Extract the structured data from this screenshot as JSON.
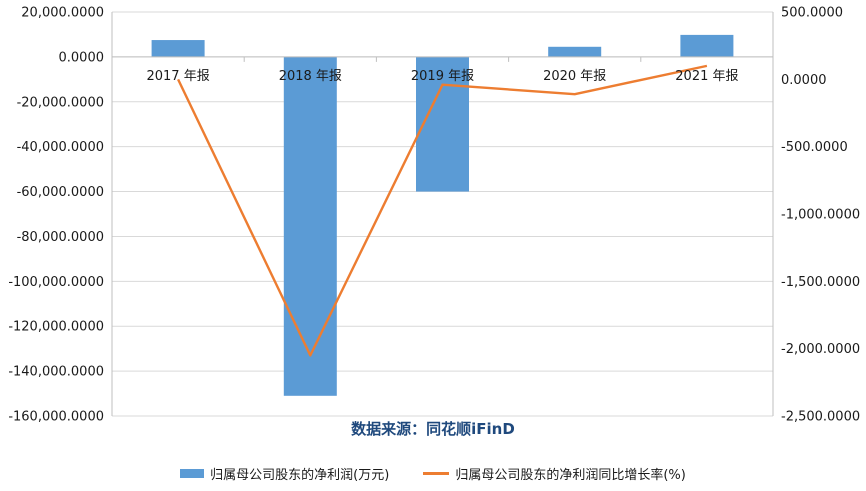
{
  "chart_data": {
    "type": "bar",
    "categories": [
      "2017 年报",
      "2018 年报",
      "2019 年报",
      "2020 年报",
      "2021 年报"
    ],
    "series": [
      {
        "name": "归属母公司股东的净利润(万元)",
        "type": "bar",
        "axis": "left",
        "color": "#5b9bd5",
        "values": [
          7500,
          -151000,
          -60000,
          4500,
          9800
        ]
      },
      {
        "name": "归属母公司股东的净利润同比增长率(%)",
        "type": "line",
        "axis": "right",
        "color": "#ed7d31",
        "values": [
          0,
          -2050,
          -40,
          -110,
          100
        ]
      }
    ],
    "y_left": {
      "ylim": [
        -160000,
        20000
      ],
      "ticks": [
        20000,
        0,
        -20000,
        -40000,
        -60000,
        -80000,
        -100000,
        -120000,
        -140000,
        -160000
      ],
      "tick_labels": [
        "20,000.0000",
        "0.0000",
        "-20,000.0000",
        "-40,000.0000",
        "-60,000.0000",
        "-80,000.0000",
        "-100,000.0000",
        "-120,000.0000",
        "-140,000.0000",
        "-160,000.0000"
      ]
    },
    "y_right": {
      "ylim": [
        -2500,
        500
      ],
      "ticks": [
        500,
        0,
        -500,
        -1000,
        -1500,
        -2000,
        -2500
      ],
      "tick_labels": [
        "500.0000",
        "0.0000",
        "-500.0000",
        "-1,000.0000",
        "-1,500.0000",
        "-2,000.0000",
        "-2,500.0000"
      ]
    },
    "grid": true,
    "legend_position": "bottom",
    "source_text": "数据来源：同花顺iFinD"
  }
}
